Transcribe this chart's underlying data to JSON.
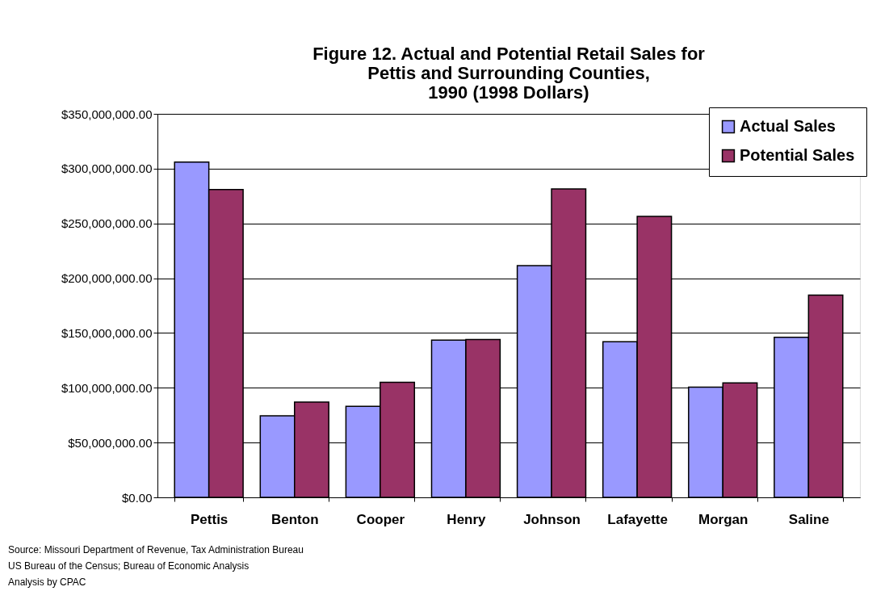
{
  "chart_data": {
    "type": "bar",
    "title": [
      "Figure 12.  Actual and Potential Retail Sales for",
      "Pettis and Surrounding Counties,",
      "1990 (1998 Dollars)"
    ],
    "categories": [
      "Pettis",
      "Benton",
      "Cooper",
      "Henry",
      "Johnson",
      "Lafayette",
      "Morgan",
      "Saline"
    ],
    "series": [
      {
        "name": "Actual Sales",
        "color": "#9999ff",
        "values": [
          306000000,
          74500000,
          83000000,
          143500000,
          211500000,
          142000000,
          100500000,
          146000000
        ]
      },
      {
        "name": "Potential Sales",
        "color": "#993366",
        "values": [
          281000000,
          87000000,
          105000000,
          144000000,
          281500000,
          256500000,
          104500000,
          184500000
        ]
      }
    ],
    "ylim": [
      0,
      350000000
    ],
    "yticks": [
      {
        "value": 0,
        "label": "$0.00"
      },
      {
        "value": 50000000,
        "label": "$50,000,000.00"
      },
      {
        "value": 100000000,
        "label": "$100,000,000.00"
      },
      {
        "value": 150000000,
        "label": "$150,000,000.00"
      },
      {
        "value": 200000000,
        "label": "$200,000,000.00"
      },
      {
        "value": 250000000,
        "label": "$250,000,000.00"
      },
      {
        "value": 300000000,
        "label": "$300,000,000.00"
      },
      {
        "value": 350000000,
        "label": "$350,000,000.00"
      }
    ],
    "grid": "y",
    "legend": "top right",
    "annotations": [
      "Source: Missouri Department of Revenue, Tax Administration Bureau",
      "US Bureau of the Census; Bureau of Economic Analysis",
      "Analysis by CPAC"
    ]
  }
}
